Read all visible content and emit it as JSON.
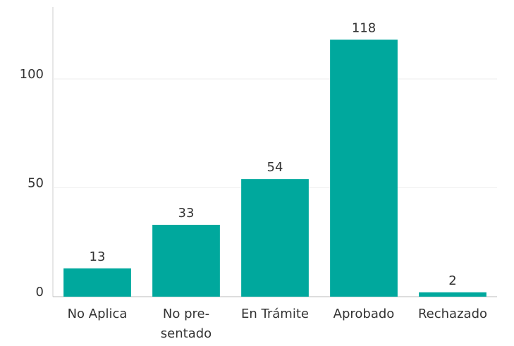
{
  "chart_data": {
    "type": "bar",
    "categories": [
      "No Aplica",
      "No pre-sentado",
      "En Trámite",
      "Aprobado",
      "Rechazado"
    ],
    "values": [
      13,
      33,
      54,
      118,
      2
    ],
    "color": "#00a89d",
    "ylim": [
      0,
      133
    ],
    "yticks": [
      0,
      50,
      100
    ],
    "grid": true
  }
}
